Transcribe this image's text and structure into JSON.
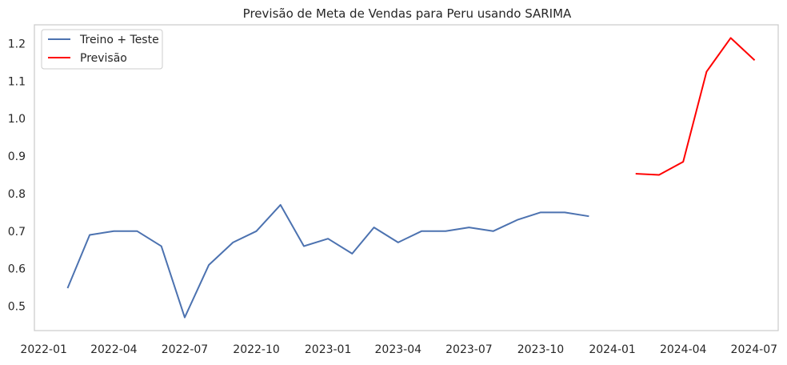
{
  "chart_data": {
    "type": "line",
    "title": "Previsão de Meta de Vendas para Peru usando SARIMA",
    "xlabel": "",
    "ylabel": "",
    "grid": false,
    "legend_placement": "top-left",
    "xlim": [
      "2021-12-20",
      "2024-08-01"
    ],
    "ylim": [
      0.435,
      1.25
    ],
    "x_ticks": [
      "2022-01-01",
      "2022-04-01",
      "2022-07-01",
      "2022-10-01",
      "2023-01-01",
      "2023-04-01",
      "2023-07-01",
      "2023-10-01",
      "2024-01-01",
      "2024-04-01",
      "2024-07-01"
    ],
    "x_tick_labels": [
      "2022-01",
      "2022-04",
      "2022-07",
      "2022-10",
      "2023-01",
      "2023-04",
      "2023-07",
      "2023-10",
      "2024-01",
      "2024-04",
      "2024-07"
    ],
    "y_ticks": [
      0.5,
      0.6,
      0.7,
      0.8,
      0.9,
      1.0,
      1.1,
      1.2
    ],
    "y_tick_labels": [
      "0.5",
      "0.6",
      "0.7",
      "0.8",
      "0.9",
      "1.0",
      "1.1",
      "1.2"
    ],
    "series": [
      {
        "name": "Treino + Teste",
        "color": "#4c72b0",
        "x": [
          "2022-02-01",
          "2022-03-01",
          "2022-04-01",
          "2022-05-01",
          "2022-06-01",
          "2022-07-01",
          "2022-08-01",
          "2022-09-01",
          "2022-10-01",
          "2022-11-01",
          "2022-12-01",
          "2023-01-01",
          "2023-02-01",
          "2023-03-01",
          "2023-04-01",
          "2023-05-01",
          "2023-06-01",
          "2023-07-01",
          "2023-08-01",
          "2023-09-01",
          "2023-10-01",
          "2023-11-01",
          "2023-12-01"
        ],
        "values": [
          0.55,
          0.69,
          0.7,
          0.7,
          0.66,
          0.47,
          0.61,
          0.67,
          0.7,
          0.77,
          0.66,
          0.68,
          0.64,
          0.71,
          0.67,
          0.7,
          0.7,
          0.71,
          0.7,
          0.73,
          0.75,
          0.75,
          0.74
        ]
      },
      {
        "name": "Previsão",
        "color": "#ff0000",
        "x": [
          "2024-02-01",
          "2024-03-01",
          "2024-04-01",
          "2024-05-01",
          "2024-06-01",
          "2024-07-01"
        ],
        "values": [
          0.853,
          0.85,
          0.885,
          1.125,
          1.215,
          1.157
        ]
      }
    ]
  }
}
